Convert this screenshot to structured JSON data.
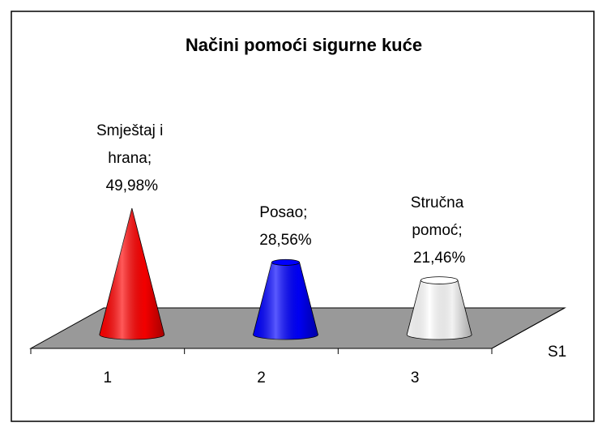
{
  "chart_data": {
    "type": "cone3d",
    "title": "Načini pomoći sigurne kuće",
    "categories": [
      "1",
      "2",
      "3"
    ],
    "series": [
      {
        "name": "S1",
        "values": [
          49.98,
          28.56,
          21.46
        ],
        "value_labels": [
          "Smještaj i hrana; 49,98%",
          "Posao; 28,56%",
          "Stručna pomoć; 21,46%"
        ],
        "colors": [
          "#ff0000",
          "#0000ff",
          "#ffffff"
        ]
      }
    ]
  }
}
